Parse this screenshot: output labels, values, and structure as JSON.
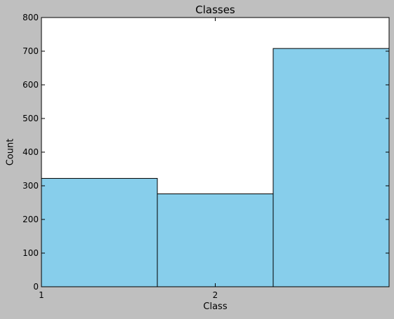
{
  "chart_data": {
    "type": "bar",
    "title": "Classes",
    "xlabel": "Class",
    "ylabel": "Count",
    "x_tick_labels": [
      {
        "label": "1",
        "value": 1
      },
      {
        "label": "2",
        "value": 2
      }
    ],
    "bins": [
      {
        "start": 1.0,
        "end": 1.6667,
        "value": 322
      },
      {
        "start": 1.6667,
        "end": 2.3333,
        "value": 276
      },
      {
        "start": 2.3333,
        "end": 3.0,
        "value": 708
      }
    ],
    "xlim": [
      1,
      3
    ],
    "ylim": [
      0,
      800
    ],
    "yticks": [
      0,
      100,
      200,
      300,
      400,
      500,
      600,
      700,
      800
    ],
    "bar_color": "#87CEEB",
    "edge_color": "#000000",
    "background_color": "#bfbfbf",
    "plot_background": "#ffffff",
    "grid": false,
    "legend": false
  }
}
